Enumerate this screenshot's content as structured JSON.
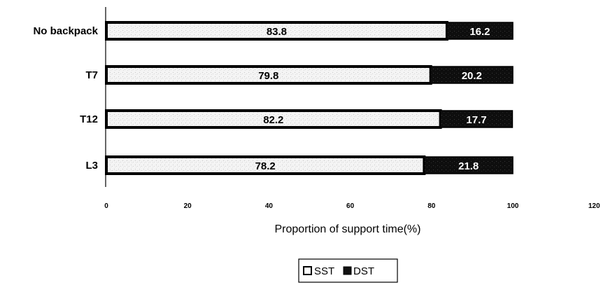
{
  "chart_data": {
    "type": "bar",
    "orientation": "horizontal",
    "stacked": true,
    "categories": [
      "No backpack",
      "T7",
      "T12",
      "L3"
    ],
    "series": [
      {
        "name": "SST",
        "values": [
          83.8,
          79.8,
          82.2,
          78.2
        ],
        "labels": [
          "83.8",
          "79.8",
          "82.2",
          "78.2"
        ],
        "color": "#f2f2f2"
      },
      {
        "name": "DST",
        "values": [
          16.2,
          20.2,
          17.7,
          21.8
        ],
        "labels": [
          "16.2",
          "20.2",
          "17.7",
          "21.8"
        ],
        "color": "#111111"
      }
    ],
    "xlabel": "Proportion of support time(%)",
    "ylabel": "",
    "title": "",
    "xlim": [
      0,
      120
    ],
    "xticks": [
      "0",
      "20",
      "40",
      "60",
      "80",
      "100",
      "120"
    ],
    "grid": false,
    "legend_position": "bottom-center"
  }
}
